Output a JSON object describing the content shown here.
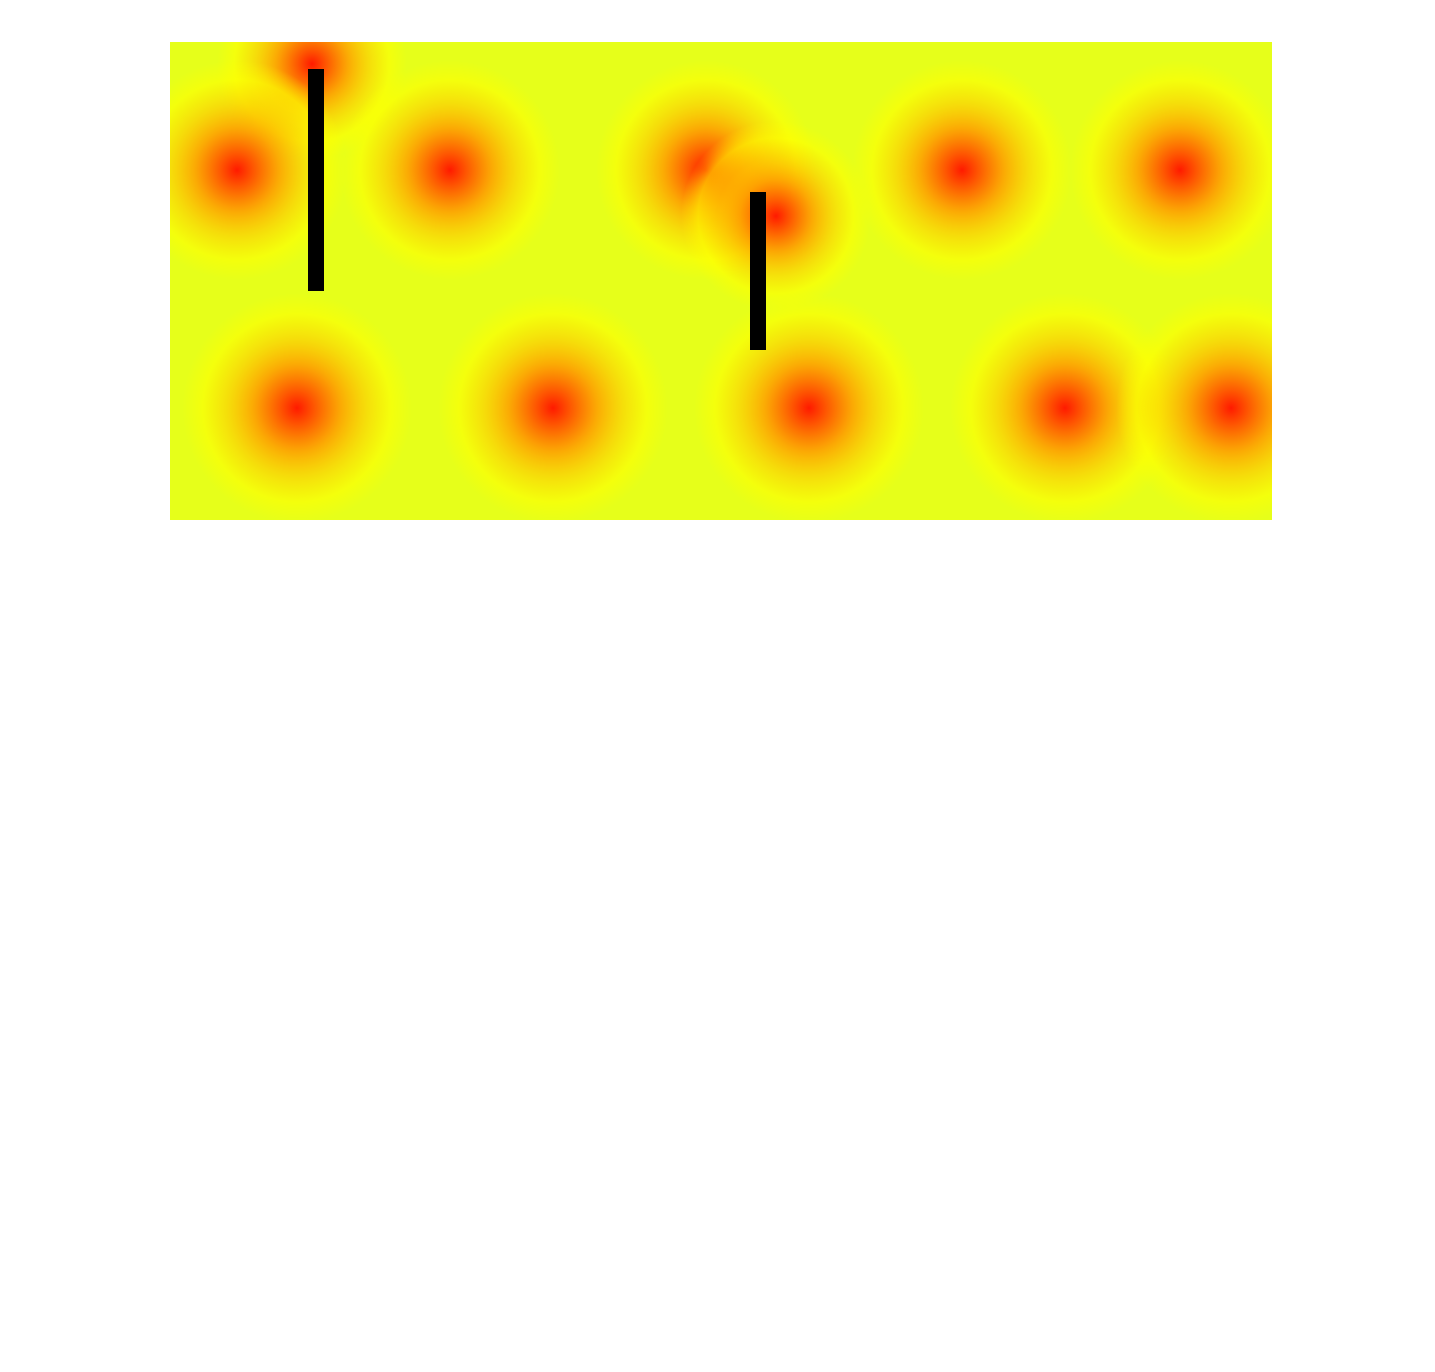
{
  "colors": {
    "field": "#e6ff1a",
    "glow_mid": "#ffff00",
    "glow_outer": "#ffa500",
    "glow_core": "#ff1a00",
    "wall": "#000000",
    "page_background": "#ffffff"
  },
  "icons": {
    "heat_source": "radial-glow-dot",
    "wall": "vertical-bar"
  },
  "scene": {
    "heat_source_count": 13,
    "wall_count": 2
  }
}
